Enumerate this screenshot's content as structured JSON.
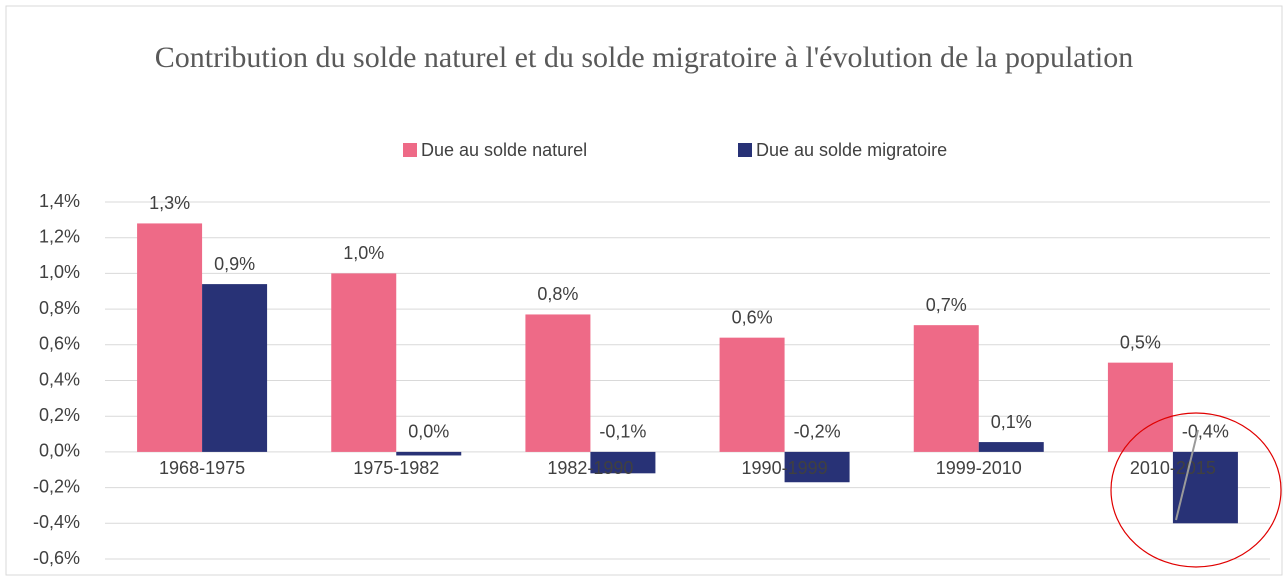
{
  "chart_data": {
    "type": "bar",
    "title": "Contribution du solde naturel et du solde migratoire à l'évolution de la population",
    "categories": [
      "1968-1975",
      "1975-1982",
      "1982-1990",
      "1990-1999",
      "1999-2010",
      "2010-2015"
    ],
    "series": [
      {
        "name": "Due au solde naturel",
        "color": "#ee6a87",
        "values": [
          1.28,
          1.0,
          0.77,
          0.64,
          0.71,
          0.5
        ],
        "value_labels": [
          "1,3%",
          "1,0%",
          "0,8%",
          "0,6%",
          "0,7%",
          "0,5%"
        ]
      },
      {
        "name": "Due au solde migratoire",
        "color": "#283276",
        "values": [
          0.94,
          -0.02,
          -0.12,
          -0.17,
          0.055,
          -0.4
        ],
        "value_labels": [
          "0,9%",
          "0,0%",
          "-0,1%",
          "-0,2%",
          "0,1%",
          "-0,4%"
        ]
      }
    ],
    "ylim": [
      -0.6,
      1.4
    ],
    "yticks": [
      {
        "value": -0.6,
        "label": "-0,6%"
      },
      {
        "value": -0.4,
        "label": "-0,4%"
      },
      {
        "value": -0.2,
        "label": "-0,2%"
      },
      {
        "value": 0,
        "label": "0,0%"
      },
      {
        "value": 0.2,
        "label": "0,2%"
      },
      {
        "value": 0.4,
        "label": "0,4%"
      },
      {
        "value": 0.6,
        "label": "0,6%"
      },
      {
        "value": 0.8,
        "label": "0,8%"
      },
      {
        "value": 1.0,
        "label": "1,0%"
      },
      {
        "value": 1.2,
        "label": "1,2%"
      },
      {
        "value": 1.4,
        "label": "1,4%"
      }
    ],
    "grid": true,
    "legend": "top"
  }
}
